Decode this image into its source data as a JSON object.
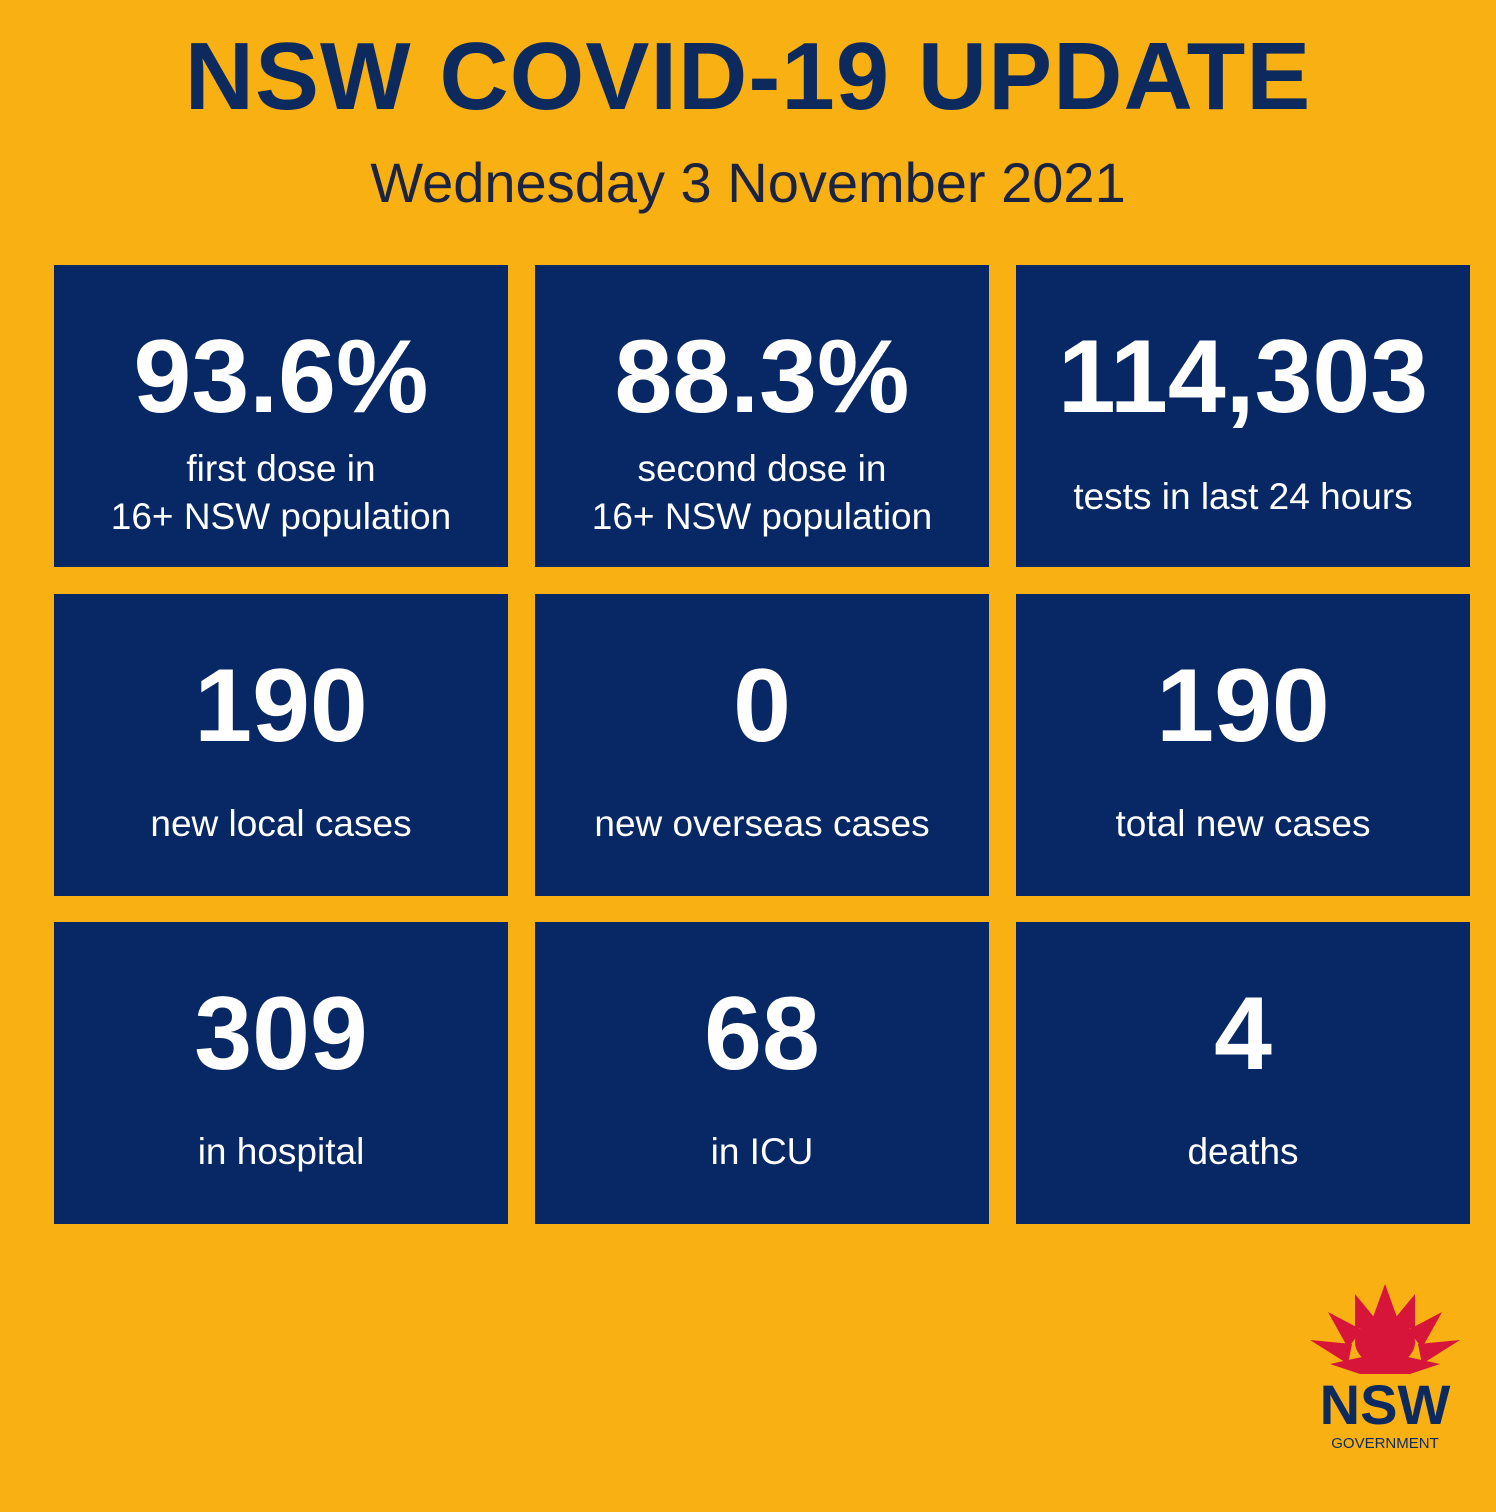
{
  "header": {
    "title": "NSW COVID-19 UPDATE",
    "subtitle": "Wednesday 3 November 2021"
  },
  "tiles": [
    {
      "value": "93.6%",
      "label": [
        "first dose in",
        "16+ NSW population"
      ]
    },
    {
      "value": "88.3%",
      "label": [
        "second dose in",
        "16+ NSW population"
      ]
    },
    {
      "value": "114,303",
      "label": [
        "tests in last 24 hours"
      ]
    },
    {
      "value": "190",
      "label": [
        "new local cases"
      ]
    },
    {
      "value": "0",
      "label": [
        "new overseas cases"
      ]
    },
    {
      "value": "190",
      "label": [
        "total new cases"
      ]
    },
    {
      "value": "309",
      "label": [
        "in hospital"
      ]
    },
    {
      "value": "68",
      "label": [
        "in ICU"
      ]
    },
    {
      "value": "4",
      "label": [
        "deaths"
      ]
    }
  ],
  "logo": {
    "name": "NSW",
    "sub": "GOVERNMENT"
  }
}
